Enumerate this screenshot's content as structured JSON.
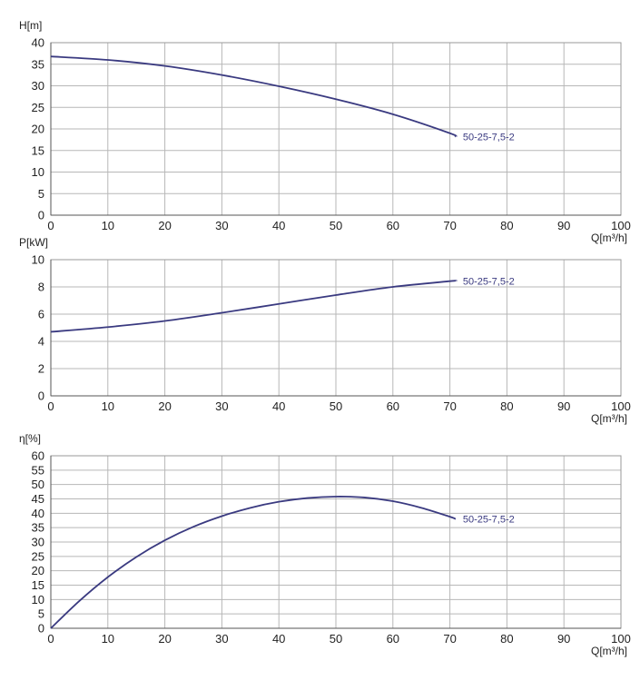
{
  "colors": {
    "curve": "#3a3a80",
    "grid": "#b7b7b7"
  },
  "chart_data": [
    {
      "type": "line",
      "ylabel": "H[m]",
      "xlabel": "Q[m³/h]",
      "xlim": [
        0,
        100
      ],
      "ylim": [
        0,
        40
      ],
      "xticks": [
        0,
        10,
        20,
        30,
        40,
        50,
        60,
        70,
        80,
        90,
        100
      ],
      "yticks": [
        0,
        5,
        10,
        15,
        20,
        25,
        30,
        35,
        40
      ],
      "grid": true,
      "series": [
        {
          "name": "50-25-7,5-2",
          "x": [
            0,
            10,
            20,
            30,
            40,
            50,
            60,
            70,
            71
          ],
          "y": [
            36.8,
            36.0,
            34.6,
            32.5,
            29.9,
            26.9,
            23.4,
            19.0,
            18.2
          ]
        }
      ]
    },
    {
      "type": "line",
      "ylabel": "P[kW]",
      "xlabel": "Q[m³/h]",
      "xlim": [
        0,
        100
      ],
      "ylim": [
        0,
        10
      ],
      "xticks": [
        0,
        10,
        20,
        30,
        40,
        50,
        60,
        70,
        80,
        90,
        100
      ],
      "yticks": [
        0,
        2,
        4,
        6,
        8,
        10
      ],
      "grid": true,
      "series": [
        {
          "name": "50-25-7,5-2",
          "x": [
            0,
            10,
            20,
            30,
            40,
            50,
            60,
            70,
            71
          ],
          "y": [
            4.7,
            5.05,
            5.5,
            6.1,
            6.75,
            7.4,
            8.0,
            8.42,
            8.45
          ]
        }
      ]
    },
    {
      "type": "line",
      "ylabel": "η[%]",
      "xlabel": "Q[m³/h]",
      "xlim": [
        0,
        100
      ],
      "ylim": [
        0,
        60
      ],
      "xticks": [
        0,
        10,
        20,
        30,
        40,
        50,
        60,
        70,
        80,
        90,
        100
      ],
      "yticks": [
        0,
        5,
        10,
        15,
        20,
        25,
        30,
        35,
        40,
        45,
        50,
        55,
        60
      ],
      "grid": true,
      "series": [
        {
          "name": "50-25-7,5-2",
          "x": [
            0,
            5,
            10,
            15,
            20,
            25,
            30,
            35,
            40,
            45,
            50,
            55,
            60,
            65,
            70,
            71
          ],
          "y": [
            0,
            9.5,
            17.8,
            24.8,
            30.6,
            35.3,
            39.0,
            41.9,
            44.0,
            45.3,
            45.8,
            45.5,
            44.2,
            41.9,
            38.8,
            38.0
          ]
        }
      ]
    }
  ]
}
